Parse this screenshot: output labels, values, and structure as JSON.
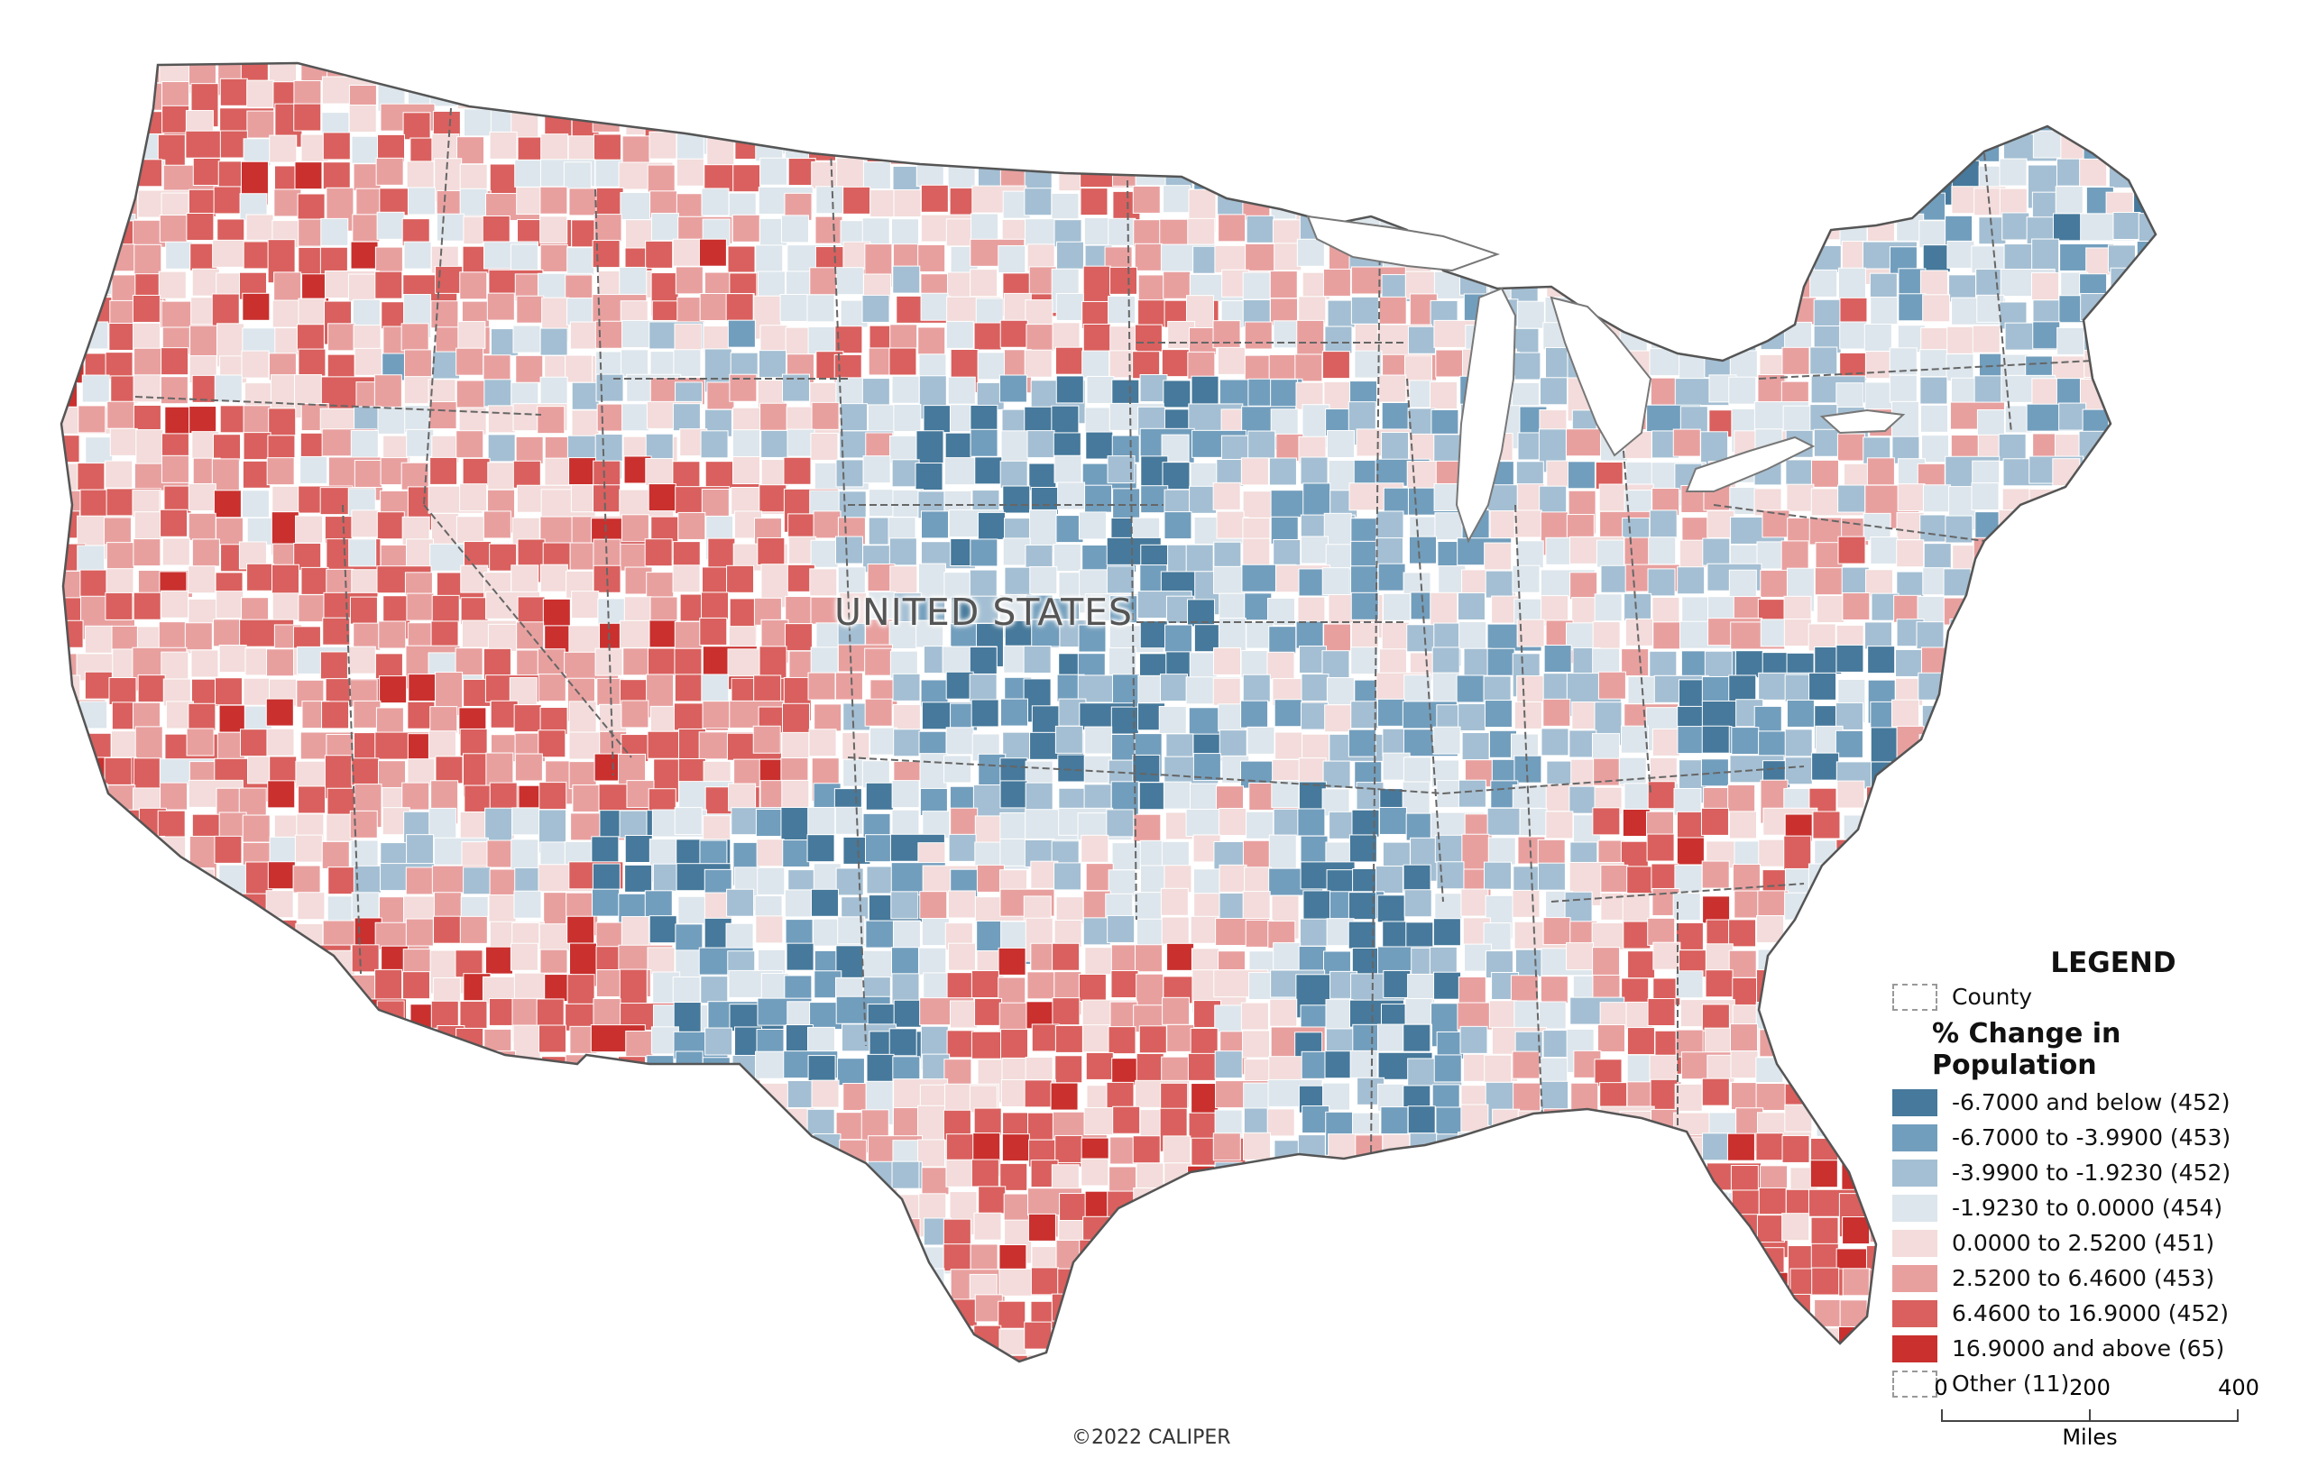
{
  "map": {
    "country_label": "UNITED STATES",
    "copyright": "©2022 CALIPER",
    "colors": {
      "class1": "#46799b",
      "class2": "#729ebd",
      "class3": "#a4bfd3",
      "class4": "#dde6ec",
      "class5": "#f3dcdb",
      "class6": "#e8a09f",
      "class7": "#d9605e",
      "class8": "#c9302e",
      "state_border": "#555555",
      "county_border": "#ffffff"
    }
  },
  "legend": {
    "title": "LEGEND",
    "county_label": "County",
    "subtitle": "% Change in Population",
    "classes": [
      {
        "label": "-6.7000 and below (452)",
        "color": "#46799b"
      },
      {
        "label": "-6.7000 to -3.9900 (453)",
        "color": "#729ebd"
      },
      {
        "label": "-3.9900 to -1.9230 (452)",
        "color": "#a4bfd3"
      },
      {
        "label": "-1.9230 to 0.0000 (454)",
        "color": "#dde6ec"
      },
      {
        "label": "0.0000 to 2.5200 (451)",
        "color": "#f3dcdb"
      },
      {
        "label": "2.5200 to 6.4600 (453)",
        "color": "#e8a09f"
      },
      {
        "label": "6.4600 to 16.9000 (452)",
        "color": "#d9605e"
      },
      {
        "label": "16.9000 and above (65)",
        "color": "#c9302e"
      }
    ],
    "other_label": "Other (11)"
  },
  "scale_bar": {
    "ticks": [
      "0",
      "200",
      "400"
    ],
    "unit": "Miles"
  }
}
